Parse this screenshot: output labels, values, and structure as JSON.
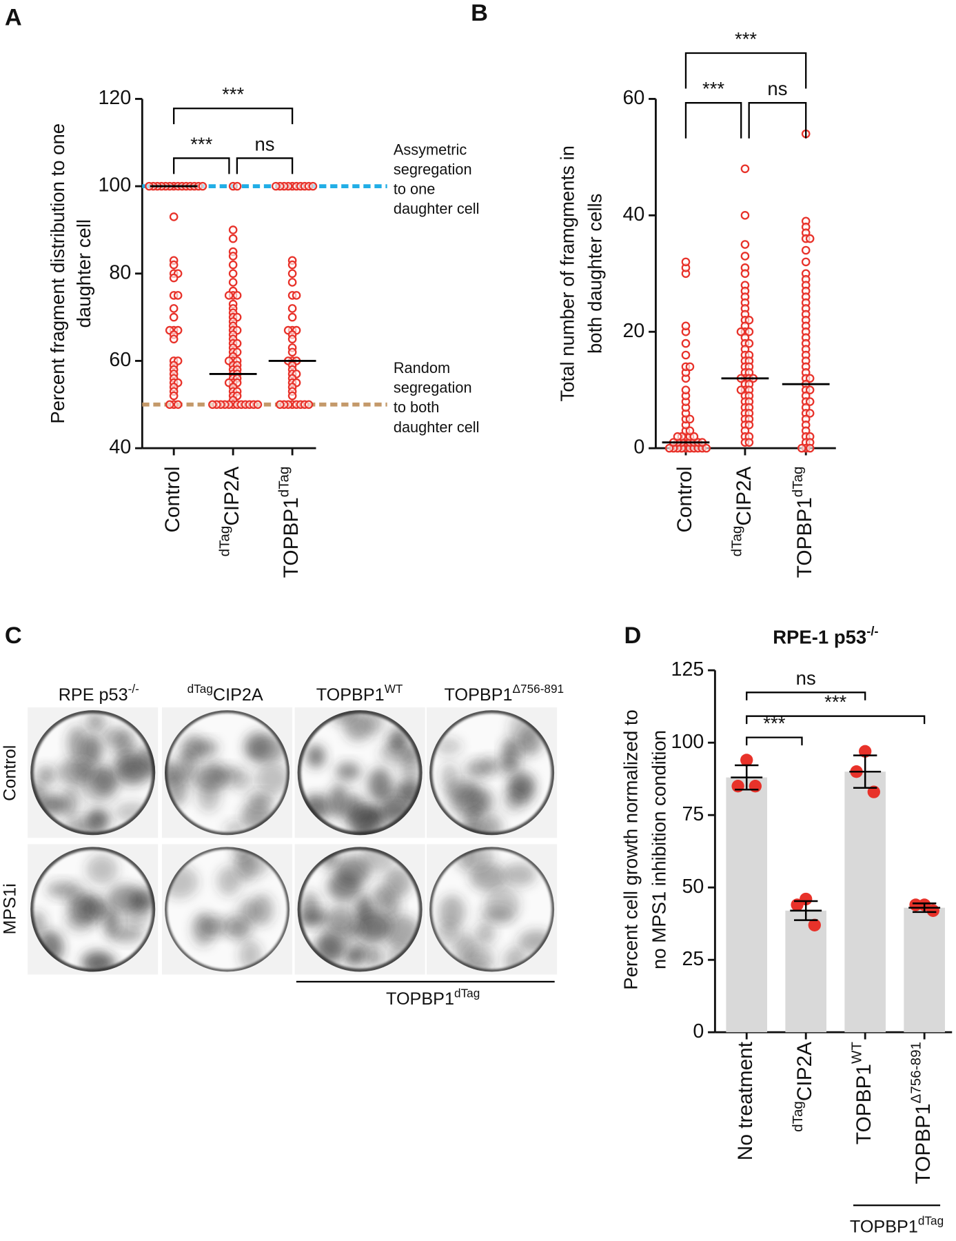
{
  "panel_labels": [
    "A",
    "B",
    "C",
    "D"
  ],
  "chart_data": [
    {
      "type": "strip",
      "y_label": [
        "Percent  fragment distribution to one",
        "daughter cell"
      ],
      "categories": [
        {
          "text": "Control"
        },
        {
          "pre_sup": "dTag",
          "text": "CIP2A"
        },
        {
          "text": "TOPBP1",
          "sup": "dTag"
        }
      ],
      "ylim": [
        40,
        120
      ],
      "yticks": [
        40,
        60,
        80,
        100,
        120
      ],
      "color": "#e8322a",
      "values": [
        [
          100,
          100,
          100,
          100,
          100,
          100,
          100,
          100,
          100,
          100,
          100,
          100,
          100,
          100,
          93,
          83,
          82,
          80,
          80,
          79,
          75,
          75,
          72,
          70,
          67,
          67,
          67,
          66,
          65,
          60,
          60,
          59,
          58,
          57,
          56,
          55,
          55,
          54,
          53,
          52,
          50,
          50,
          50
        ],
        [
          100,
          100,
          90,
          88,
          85,
          84,
          82,
          80,
          78,
          76,
          75,
          75,
          75,
          73,
          72,
          71,
          70,
          70,
          69,
          68,
          67,
          67,
          66,
          65,
          64,
          64,
          63,
          62,
          62,
          61,
          60,
          60,
          60,
          59,
          59,
          58,
          58,
          57,
          57,
          56,
          56,
          55,
          55,
          55,
          54,
          53,
          53,
          52,
          52,
          51,
          50,
          50,
          50,
          50,
          50,
          50,
          50,
          50,
          50,
          50,
          50,
          50
        ],
        [
          100,
          100,
          100,
          100,
          100,
          100,
          100,
          100,
          100,
          100,
          83,
          82,
          80,
          78,
          75,
          75,
          72,
          70,
          67,
          67,
          67,
          66,
          65,
          63,
          62,
          60,
          60,
          60,
          59,
          58,
          57,
          57,
          56,
          55,
          55,
          54,
          53,
          52,
          50,
          50,
          50,
          50,
          50,
          50,
          50,
          50
        ]
      ],
      "center_lines": [
        100,
        57,
        60
      ],
      "reference_lines": [
        {
          "value": 100,
          "color": "#21aee6",
          "label": [
            "Assymetric",
            "segregation",
            "to one",
            "daughter cell"
          ]
        },
        {
          "value": 50,
          "color": "#c4996a",
          "label": [
            "Random",
            "segregation",
            "to both",
            "daughter cell"
          ]
        }
      ],
      "comparisons": [
        {
          "from": 0,
          "to": 1,
          "label": "***"
        },
        {
          "from": 1,
          "to": 2,
          "label": "ns"
        },
        {
          "from": 0,
          "to": 2,
          "label": "***"
        }
      ]
    },
    {
      "type": "strip",
      "y_label": [
        "Total number of framgments in",
        "both daughter cells"
      ],
      "categories": [
        {
          "text": "Control"
        },
        {
          "pre_sup": "dTag",
          "text": "CIP2A"
        },
        {
          "text": "TOPBP1",
          "sup": "dTag"
        }
      ],
      "ylim": [
        0,
        60
      ],
      "yticks": [
        0,
        20,
        40,
        60
      ],
      "color": "#e8322a",
      "values": [
        [
          0,
          0,
          0,
          0,
          0,
          0,
          0,
          0,
          0,
          0,
          1,
          1,
          1,
          1,
          1,
          1,
          1,
          1,
          2,
          2,
          2,
          2,
          2,
          3,
          3,
          4,
          5,
          5,
          6,
          7,
          8,
          9,
          10,
          12,
          13,
          14,
          14,
          16,
          18,
          20,
          21,
          30,
          31,
          32
        ],
        [
          48,
          40,
          35,
          33,
          31,
          30,
          28,
          27,
          26,
          25,
          24,
          23,
          22,
          22,
          21,
          20,
          20,
          20,
          19,
          18,
          18,
          17,
          16,
          16,
          15,
          15,
          14,
          14,
          13,
          13,
          12,
          12,
          12,
          12,
          11,
          11,
          10,
          10,
          10,
          9,
          9,
          8,
          8,
          7,
          7,
          6,
          6,
          5,
          5,
          4,
          4,
          3,
          2,
          2,
          1,
          1
        ],
        [
          54,
          39,
          38,
          37,
          36,
          36,
          34,
          32,
          30,
          29,
          28,
          27,
          26,
          25,
          24,
          23,
          22,
          21,
          20,
          19,
          18,
          17,
          16,
          15,
          14,
          13,
          12,
          12,
          11,
          10,
          10,
          9,
          8,
          8,
          7,
          6,
          6,
          5,
          4,
          3,
          2,
          2,
          1,
          1,
          0,
          0,
          0
        ]
      ],
      "center_lines": [
        1,
        12,
        11
      ],
      "comparisons": [
        {
          "from": 0,
          "to": 1,
          "label": "***"
        },
        {
          "from": 1,
          "to": 2,
          "label": "ns"
        },
        {
          "from": 0,
          "to": 2,
          "label": "***"
        }
      ]
    },
    {
      "type": "bar",
      "title": {
        "text": "RPE-1 p53",
        "sup": "-/-"
      },
      "y_label": [
        "Percent cell growth normalized to",
        "no MPS1 inhibition condition"
      ],
      "categories": [
        {
          "text": "No treatment"
        },
        {
          "pre_sup": "dTag",
          "text": "CIP2A"
        },
        {
          "text": "TOPBP1",
          "sup": "WT"
        },
        {
          "text": "TOPBP1",
          "sup": "Δ756-891"
        }
      ],
      "ylim": [
        0,
        125
      ],
      "yticks": [
        0,
        25,
        50,
        75,
        100,
        125
      ],
      "color": "#d9d9d9",
      "point_color": "#e8322a",
      "values": [
        88,
        42,
        90,
        43
      ],
      "errors": [
        4.2,
        3.3,
        5.6,
        1.5
      ],
      "points": [
        [
          94,
          85,
          85
        ],
        [
          46,
          44,
          37
        ],
        [
          97,
          90,
          83
        ],
        [
          44,
          44,
          42
        ]
      ],
      "comparisons": [
        {
          "from": 0,
          "to": 1,
          "label": "***"
        },
        {
          "from": 0,
          "to": 2,
          "label": "ns"
        },
        {
          "from": 0,
          "to": 3,
          "label": "***"
        }
      ],
      "group": {
        "from": 2,
        "to": 3,
        "label": {
          "text": "TOPBP1",
          "sup": "dTag"
        }
      }
    }
  ],
  "plate_panel": {
    "columns": [
      {
        "text": "RPE p53",
        "sup": "-/-"
      },
      {
        "pre_sup": "dTag",
        "text": "CIP2A"
      },
      {
        "text": "TOPBP1",
        "sup": "WT"
      },
      {
        "text": "TOPBP1",
        "sup": "Δ756-891"
      }
    ],
    "rows": [
      "Control",
      "MPS1i"
    ],
    "group_label": {
      "text": "TOPBP1",
      "sup": "dTag"
    }
  }
}
